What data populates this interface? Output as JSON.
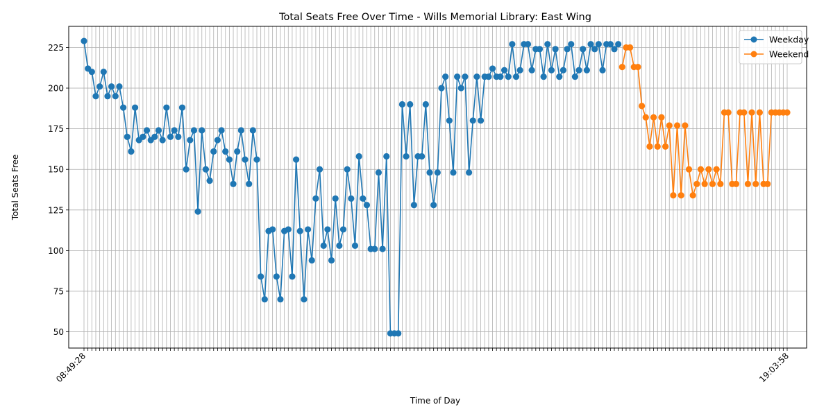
{
  "chart_data": {
    "type": "line",
    "title": "Total Seats Free Over Time - Wills Memorial Library: East Wing",
    "xlabel": "Time of Day",
    "ylabel": "Total Seats Free",
    "ylim": [
      40,
      238
    ],
    "yticks": [
      50,
      75,
      100,
      125,
      150,
      175,
      200,
      225
    ],
    "grid": true,
    "legend_position": "top-right",
    "colors": {
      "Weekday": "#1f77b4",
      "Weekend": "#ff7f0e"
    },
    "x_tick_first": "08:49:28",
    "x_tick_last": "19:03:58",
    "series": [
      {
        "name": "Weekday",
        "values": [
          229,
          212,
          210,
          195,
          201,
          210,
          195,
          201,
          195,
          201,
          188,
          170,
          161,
          188,
          168,
          170,
          174,
          168,
          170,
          174,
          168,
          188,
          170,
          174,
          170,
          188,
          150,
          168,
          174,
          124,
          174,
          150,
          143,
          161,
          168,
          174,
          161,
          156,
          141,
          161,
          174,
          156,
          141,
          174,
          156,
          84,
          70,
          112,
          113,
          84,
          70,
          112,
          113,
          84,
          156,
          112,
          70,
          113,
          94,
          132,
          150,
          103,
          113,
          94,
          132,
          103,
          113,
          150,
          132,
          103,
          158,
          132,
          128,
          101,
          101,
          148,
          101,
          158,
          49,
          49,
          49,
          190,
          158,
          190,
          128,
          158,
          158,
          190,
          148,
          128,
          148,
          200,
          207,
          180,
          148,
          207,
          200,
          207,
          148,
          180,
          207,
          180,
          207,
          207,
          212,
          207,
          207,
          211,
          207,
          227,
          207,
          211,
          227,
          227,
          211,
          224,
          224,
          207,
          227,
          211,
          224,
          207,
          211,
          224,
          227,
          207,
          211,
          224,
          211,
          227,
          224,
          227,
          211,
          227,
          227,
          224,
          227
        ]
      },
      {
        "name": "Weekend",
        "values": [
          213,
          225,
          225,
          213,
          213,
          189,
          182,
          164,
          182,
          164,
          182,
          164,
          177,
          134,
          177,
          134,
          177,
          150,
          134,
          141,
          150,
          141,
          150,
          141,
          150,
          141,
          185,
          185,
          141,
          141,
          185,
          185,
          141,
          185,
          141,
          185,
          141,
          141,
          185,
          185,
          185,
          185,
          185
        ]
      }
    ]
  }
}
